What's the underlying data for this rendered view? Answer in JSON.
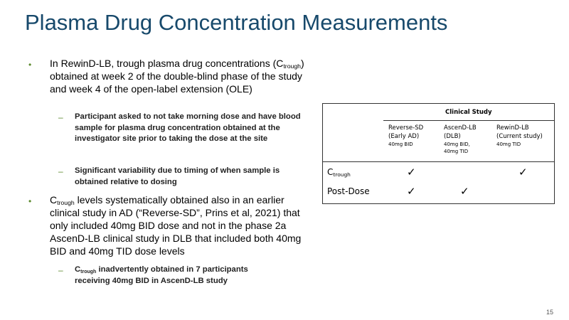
{
  "title": "Plasma Drug Concentration Measurements",
  "bullets": [
    {
      "marker": "•",
      "parts": [
        "In RewinD-LB, trough plasma drug concentrations (C",
        "trough",
        ") obtained at week 2 of the double-blind phase of the study and week 4 of the open-label extension (OLE)"
      ],
      "subs": [
        {
          "marker": "–",
          "text": "Participant asked to not take morning dose and have blood sample for plasma drug concentration obtained at the investigator site prior to taking the dose at the site"
        },
        {
          "marker": "–",
          "text": "Significant variability due to timing of when sample is obtained relative to dosing"
        }
      ]
    },
    {
      "marker": "•",
      "parts": [
        "C",
        "trough",
        " levels systematically obtained also in an earlier clinical study in AD (“Reverse-SD”, Prins et al, 2021) that only included 40mg BID dose and not in the phase 2a AscenD-LB clinical study in DLB that included both 40mg BID and 40mg TID dose levels"
      ],
      "subs": [
        {
          "marker": "–",
          "parts": [
            "C",
            "trough",
            " inadvertently obtained in 7 participants receiving 40mg BID in AscenD-LB study"
          ]
        }
      ]
    }
  ],
  "table": {
    "header": "Clinical Study",
    "columns": [
      {
        "name": "Reverse-SD",
        "sub": "(Early AD)",
        "dose": "40mg BID"
      },
      {
        "name": "AscenD-LB",
        "sub": "(DLB)",
        "dose": "40mg BID, 40mg TID"
      },
      {
        "name": "RewinD-LB",
        "sub": "(Current study)",
        "dose": "40mg TID"
      }
    ],
    "rows": [
      {
        "label": "C",
        "label_sub": "trough",
        "checks": [
          "✓",
          "",
          "✓"
        ]
      },
      {
        "label": "Post-Dose",
        "checks": [
          "✓",
          "✓",
          ""
        ]
      }
    ]
  },
  "page_number": "15"
}
